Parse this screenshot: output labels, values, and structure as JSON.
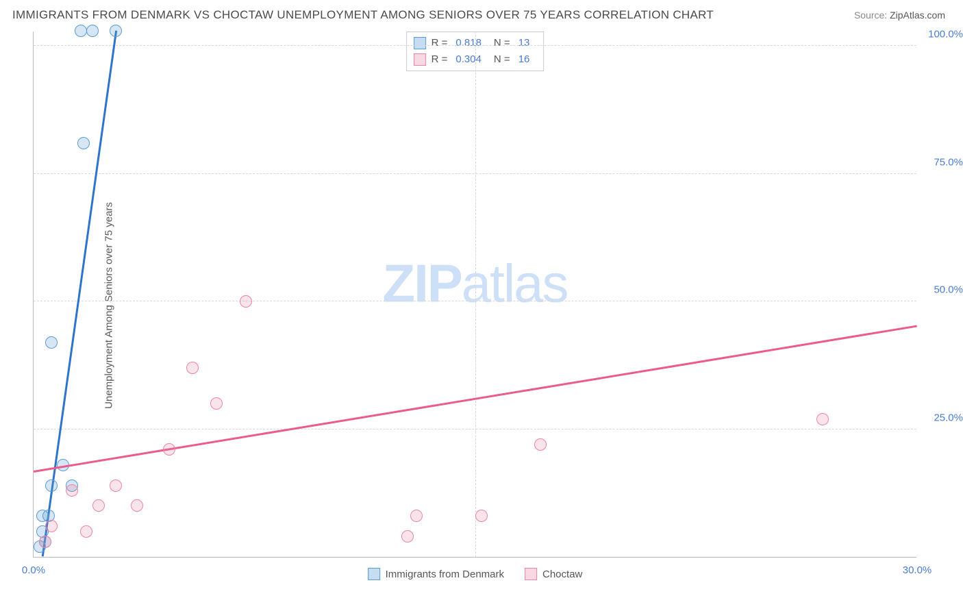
{
  "title": "IMMIGRANTS FROM DENMARK VS CHOCTAW UNEMPLOYMENT AMONG SENIORS OVER 75 YEARS CORRELATION CHART",
  "source_label": "Source:",
  "source_value": "ZipAtlas.com",
  "ylabel": "Unemployment Among Seniors over 75 years",
  "watermark_zip": "ZIP",
  "watermark_atlas": "atlas",
  "chart": {
    "type": "scatter",
    "background_color": "#ffffff",
    "grid_color": "#d8d8d8",
    "axis_color": "#bbbbbb",
    "tick_label_color": "#4a7bd6",
    "xlim": [
      0,
      30
    ],
    "ylim": [
      0,
      103
    ],
    "yticks": [
      25,
      50,
      75,
      100
    ],
    "ytick_labels": [
      "25.0%",
      "50.0%",
      "75.0%",
      "100.0%"
    ],
    "xticks": [
      0,
      30
    ],
    "xtick_labels": [
      "0.0%",
      "30.0%"
    ],
    "xgrid_at": [
      15
    ],
    "marker_radius": 9,
    "marker_stroke_width": 1.5,
    "marker_fill_opacity": 0.25,
    "trend_line_width": 2.5
  },
  "series": [
    {
      "name": "Immigrants from Denmark",
      "color_stroke": "#5b9bd5",
      "color_fill": "rgba(91,155,213,0.25)",
      "trend_color": "#2e75c9",
      "legend_swatch_fill": "rgba(91,155,213,0.35)",
      "legend_swatch_border": "#5b9bd5",
      "R": "0.818",
      "N": "13",
      "trend": {
        "x1": 0.3,
        "y1": 0,
        "x2": 2.8,
        "y2": 103
      },
      "points": [
        {
          "x": 1.6,
          "y": 103
        },
        {
          "x": 2.0,
          "y": 103
        },
        {
          "x": 2.8,
          "y": 103
        },
        {
          "x": 1.7,
          "y": 81
        },
        {
          "x": 0.6,
          "y": 42
        },
        {
          "x": 1.0,
          "y": 18
        },
        {
          "x": 1.3,
          "y": 14
        },
        {
          "x": 0.6,
          "y": 14
        },
        {
          "x": 0.3,
          "y": 8
        },
        {
          "x": 0.5,
          "y": 8
        },
        {
          "x": 0.3,
          "y": 5
        },
        {
          "x": 0.4,
          "y": 3
        },
        {
          "x": 0.2,
          "y": 2
        }
      ]
    },
    {
      "name": "Choctaw",
      "color_stroke": "#e986a5",
      "color_fill": "rgba(233,134,165,0.22)",
      "trend_color": "#ea5d8b",
      "legend_swatch_fill": "rgba(233,134,165,0.32)",
      "legend_swatch_border": "#e986a5",
      "R": "0.304",
      "N": "16",
      "trend": {
        "x1": 0,
        "y1": 16.5,
        "x2": 30,
        "y2": 45
      },
      "points": [
        {
          "x": 7.2,
          "y": 50
        },
        {
          "x": 5.4,
          "y": 37
        },
        {
          "x": 6.2,
          "y": 30
        },
        {
          "x": 26.8,
          "y": 27
        },
        {
          "x": 17.2,
          "y": 22
        },
        {
          "x": 4.6,
          "y": 21
        },
        {
          "x": 2.8,
          "y": 14
        },
        {
          "x": 1.3,
          "y": 13
        },
        {
          "x": 2.2,
          "y": 10
        },
        {
          "x": 3.5,
          "y": 10
        },
        {
          "x": 13.0,
          "y": 8
        },
        {
          "x": 15.2,
          "y": 8
        },
        {
          "x": 1.8,
          "y": 5
        },
        {
          "x": 0.6,
          "y": 6
        },
        {
          "x": 12.7,
          "y": 4
        },
        {
          "x": 0.4,
          "y": 3
        }
      ]
    }
  ],
  "legend_top": {
    "R_label": "R =",
    "N_label": "N ="
  },
  "legend_bottom_items": [
    "Immigrants from Denmark",
    "Choctaw"
  ]
}
